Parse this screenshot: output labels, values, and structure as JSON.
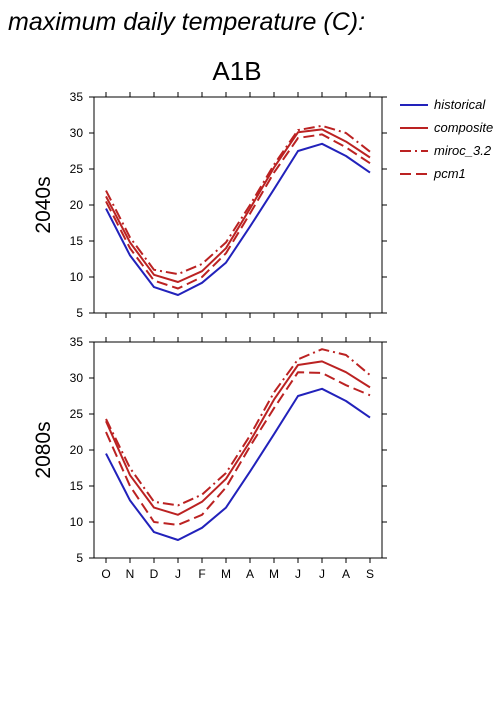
{
  "page": {
    "title": "maximum daily temperature (C):"
  },
  "chart_data": {
    "type": "line",
    "title": "A1B",
    "x": [
      "O",
      "N",
      "D",
      "J",
      "F",
      "M",
      "A",
      "M",
      "J",
      "J",
      "A",
      "S"
    ],
    "ylim": [
      5,
      35
    ],
    "yticks": [
      5,
      10,
      15,
      20,
      25,
      30,
      35
    ],
    "grid": false,
    "legend_position": "top-right",
    "legend": [
      {
        "name": "historical",
        "color": "#2222bb",
        "style": "solid"
      },
      {
        "name": "composite",
        "color": "#bb2222",
        "style": "solid"
      },
      {
        "name": "miroc_3.2",
        "color": "#bb2222",
        "style": "dashdot"
      },
      {
        "name": "pcm1",
        "color": "#bb2222",
        "style": "dashed"
      }
    ],
    "panels": [
      {
        "row_label": "2040s",
        "series": [
          {
            "name": "historical",
            "values": [
              19.5,
              13.0,
              8.6,
              7.5,
              9.2,
              12.0,
              17.0,
              22.2,
              27.5,
              28.5,
              26.8,
              24.5
            ]
          },
          {
            "name": "composite",
            "values": [
              21.2,
              14.8,
              10.3,
              9.3,
              10.8,
              14.0,
              19.5,
              25.2,
              30.1,
              30.5,
              28.8,
              26.6
            ]
          },
          {
            "name": "miroc_3.2",
            "values": [
              22.0,
              15.5,
              11.0,
              10.4,
              11.8,
              14.8,
              20.0,
              25.6,
              30.4,
              31.0,
              30.0,
              27.4
            ]
          },
          {
            "name": "pcm1",
            "values": [
              20.5,
              14.0,
              9.5,
              8.4,
              10.0,
              13.3,
              18.8,
              24.5,
              29.3,
              29.8,
              28.0,
              25.8
            ]
          }
        ]
      },
      {
        "row_label": "2080s",
        "series": [
          {
            "name": "historical",
            "values": [
              19.5,
              13.0,
              8.6,
              7.5,
              9.2,
              12.0,
              17.0,
              22.2,
              27.5,
              28.5,
              26.8,
              24.5
            ]
          },
          {
            "name": "composite",
            "values": [
              24.0,
              16.5,
              12.0,
              11.0,
              12.8,
              16.0,
              21.2,
              27.0,
              31.8,
              32.3,
              30.8,
              28.7
            ]
          },
          {
            "name": "miroc_3.2",
            "values": [
              24.3,
              17.5,
              12.8,
              12.3,
              13.8,
              16.8,
              22.0,
              28.0,
              32.6,
              34.0,
              33.2,
              30.4
            ]
          },
          {
            "name": "pcm1",
            "values": [
              22.5,
              15.0,
              10.0,
              9.6,
              11.0,
              14.8,
              20.5,
              25.8,
              30.8,
              30.7,
              29.0,
              27.6
            ]
          }
        ]
      }
    ]
  }
}
